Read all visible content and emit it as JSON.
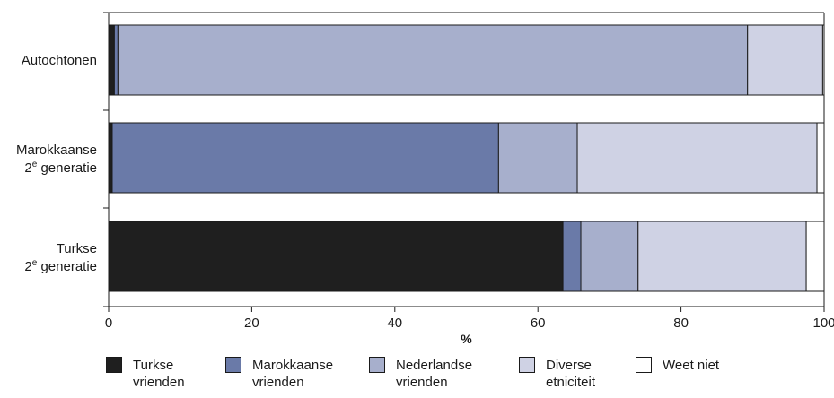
{
  "chart_data": {
    "type": "bar",
    "orientation": "horizontal",
    "stacked": true,
    "title": "",
    "xlabel": "%",
    "ylabel": "",
    "xlim": [
      0,
      100
    ],
    "xticks": [
      "0",
      "20",
      "40",
      "60",
      "80",
      "100"
    ],
    "grid": false,
    "legend_position": "bottom",
    "categories": [
      {
        "line1": "Autochtonen",
        "sup": "",
        "line2": ""
      },
      {
        "line1": "Marokkaanse",
        "sup": "e",
        "line2": "generatie",
        "prefix": "2"
      },
      {
        "line1": "Turkse",
        "sup": "e",
        "line2": "generatie",
        "prefix": "2"
      }
    ],
    "series": [
      {
        "name": "Turkse vrienden",
        "legend_lines": [
          "Turkse",
          "vrienden"
        ],
        "color": "#1f1f1f",
        "values": [
          0.8,
          0.5,
          63.5
        ]
      },
      {
        "name": "Marokkaanse vrienden",
        "legend_lines": [
          "Marokkaanse",
          "vrienden"
        ],
        "color": "#6a7aa8",
        "values": [
          0.5,
          54.0,
          2.5
        ]
      },
      {
        "name": "Nederlandse vrienden",
        "legend_lines": [
          "Nederlandse",
          "vrienden"
        ],
        "color": "#a7afcc",
        "values": [
          88.0,
          11.0,
          8.0
        ]
      },
      {
        "name": "Diverse etniciteit",
        "legend_lines": [
          "Diverse",
          "etniciteit"
        ],
        "color": "#cfd2e4",
        "values": [
          10.5,
          33.5,
          23.5
        ]
      },
      {
        "name": "Weet niet",
        "legend_lines": [
          "Weet niet",
          ""
        ],
        "color": "#ffffff",
        "values": [
          0.2,
          1.0,
          2.5
        ]
      }
    ]
  }
}
